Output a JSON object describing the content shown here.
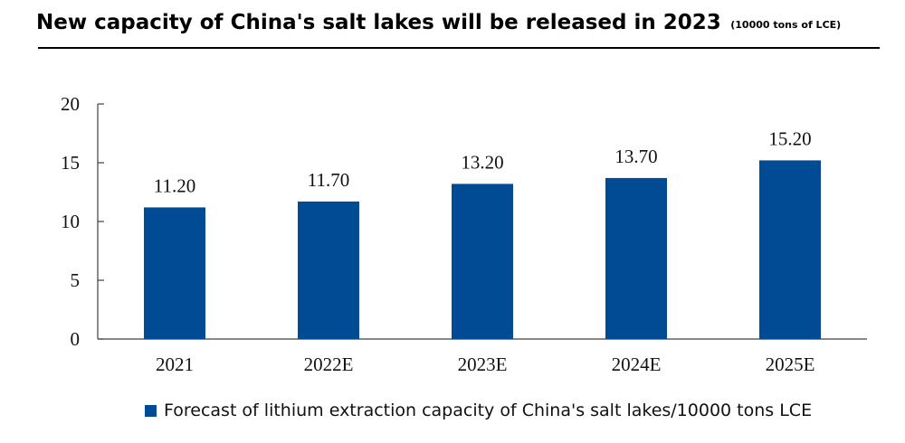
{
  "title": "New capacity of China's salt lakes will be released in 2023",
  "subtitle": "(10000 tons of LCE)",
  "colors": {
    "bar": "#004b93",
    "axis": "#404040",
    "text": "#111111"
  },
  "chart_data": {
    "type": "bar",
    "categories": [
      "2021",
      "2022E",
      "2023E",
      "2024E",
      "2025E"
    ],
    "series": [
      {
        "name": "Forecast of lithium extraction capacity of China's salt lakes/10000 tons LCE",
        "values": [
          11.2,
          11.7,
          13.2,
          13.7,
          15.2
        ]
      }
    ],
    "value_labels": [
      "11.20",
      "11.70",
      "13.20",
      "13.70",
      "15.20"
    ],
    "yticks": [
      0,
      5,
      10,
      15,
      20
    ],
    "ylim": [
      0,
      20
    ],
    "grid": false,
    "legend_position": "bottom"
  }
}
